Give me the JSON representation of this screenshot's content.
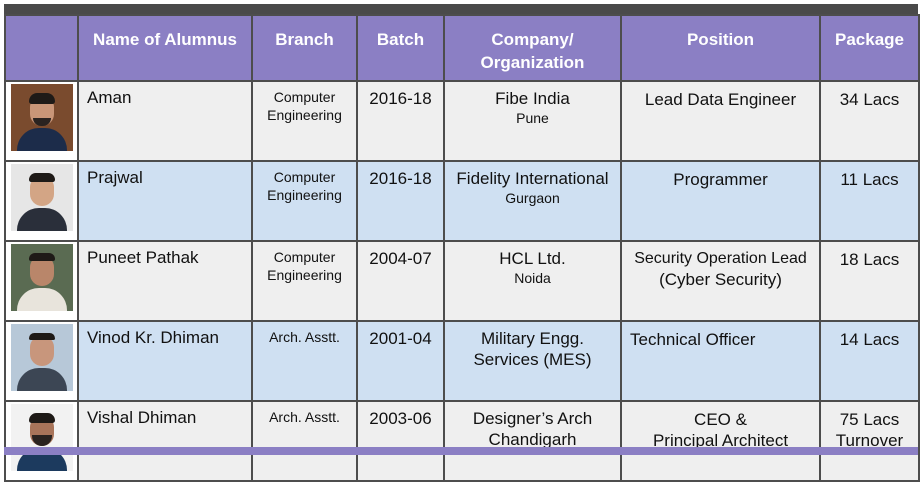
{
  "headers": [
    "",
    "Name of Alumnus",
    "Branch",
    "Batch",
    "Company/ Organization",
    "Position",
    "Package"
  ],
  "rows": [
    {
      "photo": "alumnus-photo",
      "name": "Aman",
      "branch_line1": "Computer",
      "branch_line2": "Engineering",
      "batch": "2016-18",
      "company": "Fibe India",
      "city": "Pune",
      "position_line1": "Lead Data Engineer",
      "position_line2": "",
      "package_line1": "34 Lacs",
      "package_line2": ""
    },
    {
      "photo": "alumnus-photo",
      "name": "Prajwal",
      "branch_line1": "Computer",
      "branch_line2": "Engineering",
      "batch": "2016-18",
      "company": "Fidelity International",
      "city": "Gurgaon",
      "position_line1": "Programmer",
      "position_line2": "",
      "package_line1": "11 Lacs",
      "package_line2": ""
    },
    {
      "photo": "alumnus-photo",
      "name": "Puneet Pathak",
      "branch_line1": "Computer",
      "branch_line2": "Engineering",
      "batch": "2004-07",
      "company": "HCL Ltd.",
      "city": "Noida",
      "position_line1": "Security Operation Lead",
      "position_line2": "(Cyber Security)",
      "package_line1": "18 Lacs",
      "package_line2": ""
    },
    {
      "photo": "alumnus-photo",
      "name": "Vinod Kr. Dhiman",
      "branch_line1": "Arch. Asstt.",
      "branch_line2": "",
      "batch": "2001-04",
      "company": "Military Engg.",
      "city": "Services (MES)",
      "position_line1": "Technical Officer",
      "position_line2": "",
      "package_line1": "14 Lacs",
      "package_line2": ""
    },
    {
      "photo": "alumnus-photo",
      "name": "Vishal Dhiman",
      "branch_line1": "Arch. Asstt.",
      "branch_line2": "",
      "batch": "2003-06",
      "company": "Designer’s Arch",
      "city": "Chandigarh",
      "position_line1": "CEO &",
      "position_line2": "Principal Architect",
      "package_line1": "75 Lacs",
      "package_line2": "Turnover"
    }
  ],
  "colors": {
    "header_bg": "#8b7fc4",
    "row_gray": "#efefef",
    "row_blue": "#cfe0f2",
    "border": "#4d4d4d"
  }
}
